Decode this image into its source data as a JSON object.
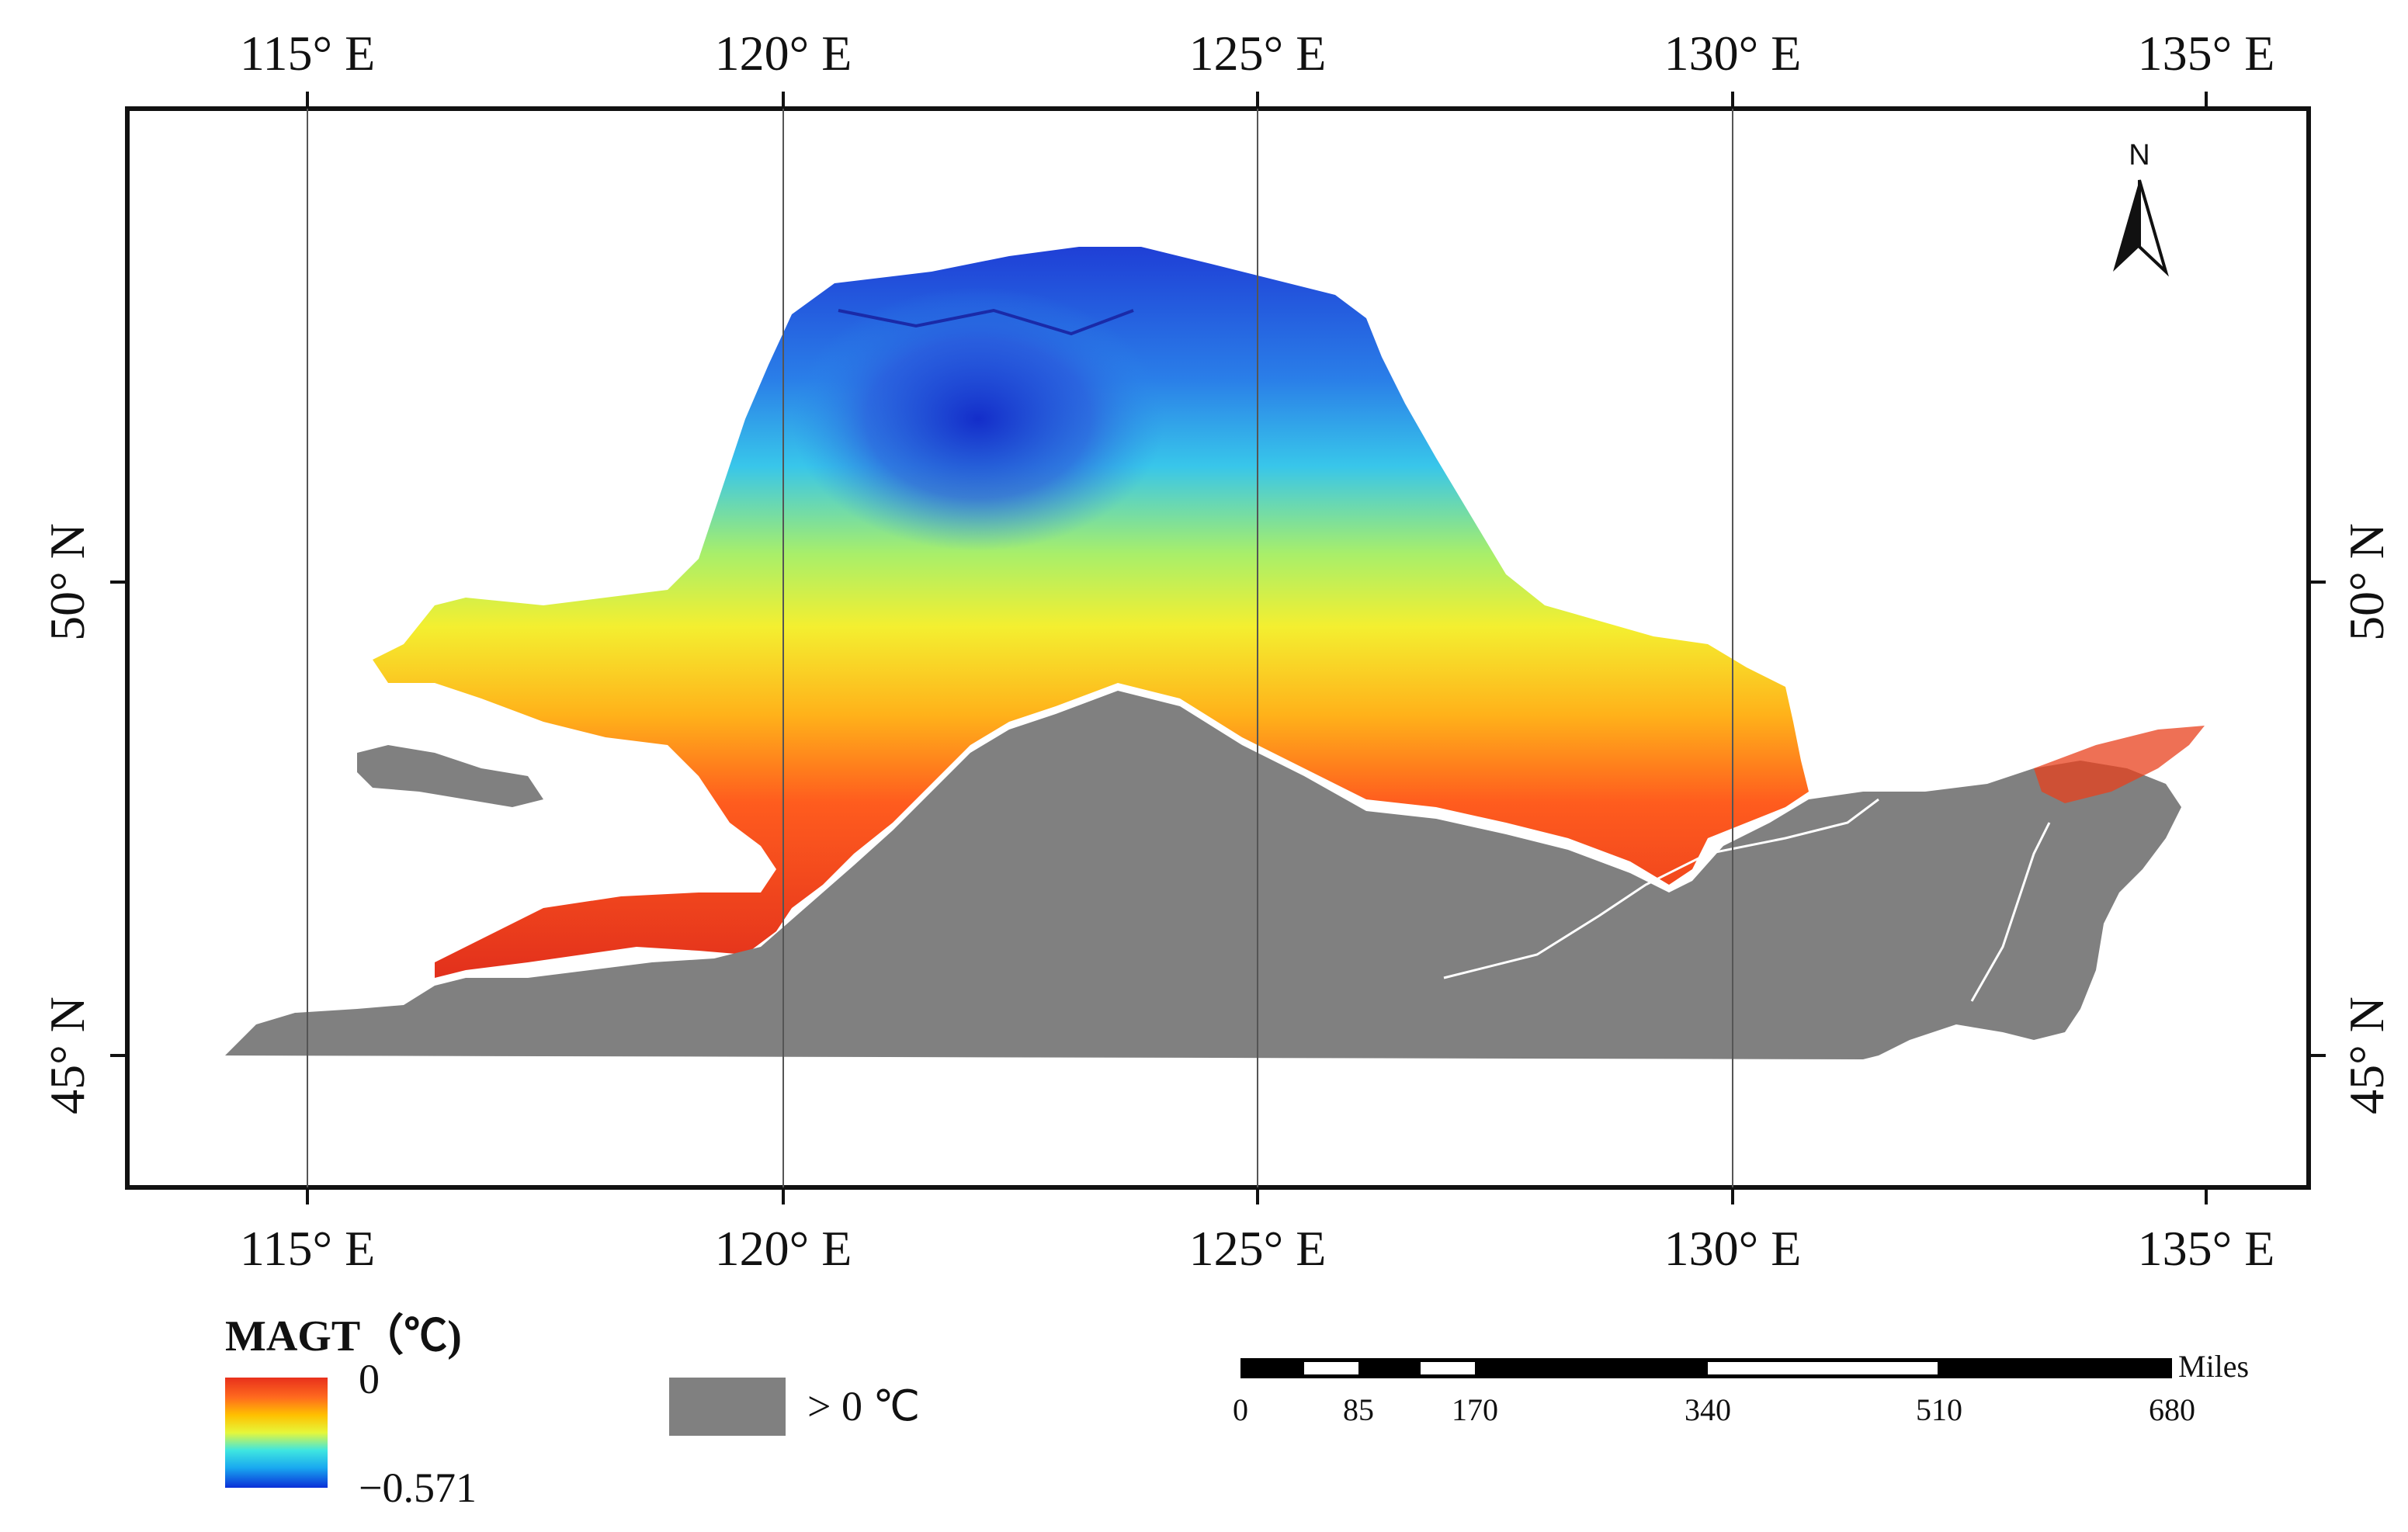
{
  "map": {
    "longitude_ticks": [
      "115° E",
      "120° E",
      "125° E",
      "130° E",
      "135° E"
    ],
    "latitude_ticks": [
      "50° N",
      "45° N"
    ],
    "north_arrow_label": "N"
  },
  "legend": {
    "title": "MAGT（℃)",
    "gradient_max": "0",
    "gradient_min": "−0.571",
    "positive_label": "> 0 ℃",
    "positive_color": "#808080",
    "gradient_colors": [
      "#0a2fd8",
      "#19a8f0",
      "#3fe6e0",
      "#e6f73a",
      "#ffb000",
      "#ff5020",
      "#e8301c"
    ]
  },
  "scale_bar": {
    "unit": "Miles",
    "labels": [
      "0",
      "85",
      "170",
      "340",
      "510",
      "680"
    ]
  }
}
